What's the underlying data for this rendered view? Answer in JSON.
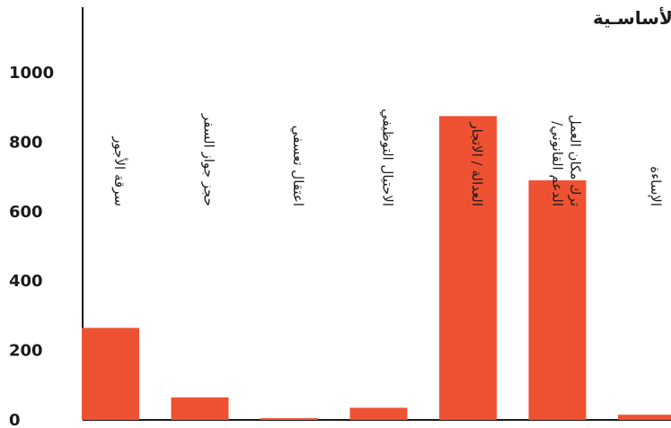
{
  "chart_data": {
    "type": "bar",
    "title": "توزيـع الأفراد حسـب قضيـة المناصرة الأساسـية",
    "xlabel": "",
    "ylabel": "",
    "ylim": [
      0,
      1100
    ],
    "yticks": [
      0,
      200,
      400,
      600,
      800,
      1000
    ],
    "categories": [
      [
        "سرقة الأجور"
      ],
      [
        "حجز جواز السفر"
      ],
      [
        "اعتقال تعسفي"
      ],
      [
        "الاحتيال التوظيفي"
      ],
      [
        "العدالة / الاتجار"
      ],
      [
        "الدعم القانوني/",
        "ترك مكان العمل"
      ],
      [
        "الإساءة"
      ]
    ],
    "values": [
      265,
      65,
      5,
      35,
      875,
      690,
      15
    ],
    "bar_color": "#ee5233",
    "grid": false,
    "legend": "none"
  }
}
